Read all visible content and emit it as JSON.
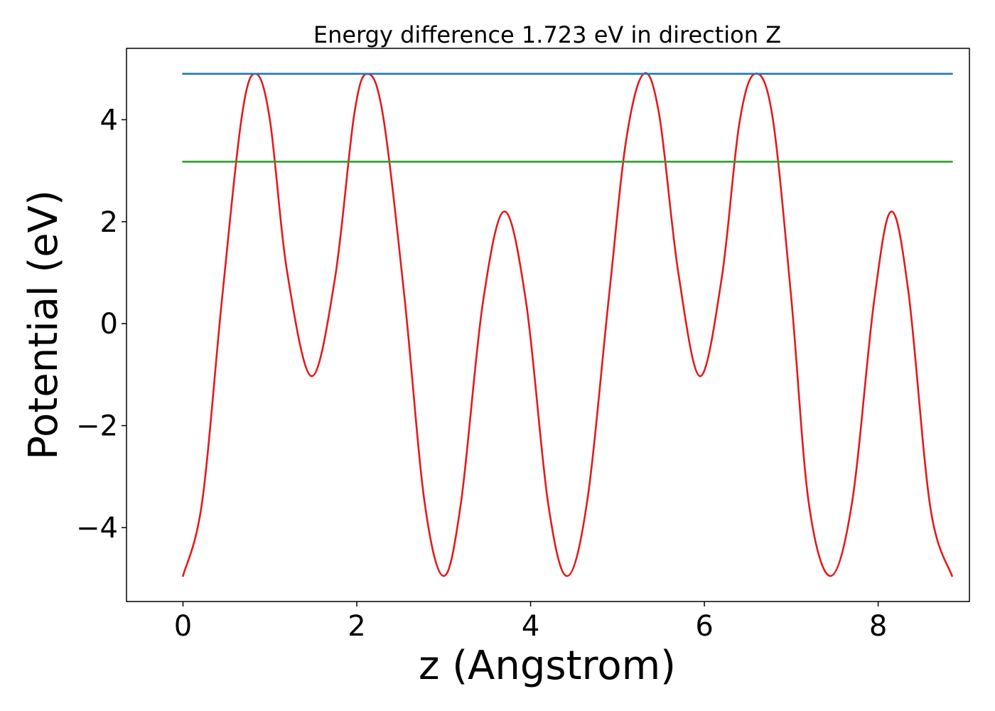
{
  "chart_data": {
    "type": "line",
    "title": "Energy difference 1.723 eV in direction Z",
    "xlabel": "z (Angstrom)",
    "ylabel": "Potential (eV)",
    "xlim": [
      -0.65,
      9.05
    ],
    "ylim": [
      -5.45,
      5.4
    ],
    "xticks": [
      0,
      2,
      4,
      6,
      8
    ],
    "yticks": [
      -4,
      -2,
      0,
      2,
      4
    ],
    "xtick_labels": [
      "0",
      "2",
      "4",
      "6",
      "8"
    ],
    "ytick_labels": [
      "−4",
      "−2",
      "0",
      "2",
      "4"
    ],
    "grid": false,
    "legend": "none",
    "series": [
      {
        "color": "#e31a1c",
        "kind": "curve",
        "x": [
          0.0,
          0.22,
          0.45,
          0.68,
          0.84,
          1.0,
          1.2,
          1.48,
          1.75,
          1.97,
          2.12,
          2.3,
          2.55,
          2.78,
          3.0,
          3.2,
          3.45,
          3.7,
          3.95,
          4.2,
          4.42,
          4.65,
          4.9,
          5.1,
          5.3,
          5.48,
          5.7,
          5.95,
          6.2,
          6.4,
          6.58,
          6.78,
          7.0,
          7.2,
          7.45,
          7.7,
          7.95,
          8.15,
          8.35,
          8.6,
          8.85
        ],
        "y": [
          -4.95,
          -3.5,
          0.5,
          4.1,
          4.9,
          4.0,
          1.0,
          -1.03,
          0.9,
          4.1,
          4.9,
          4.1,
          0.5,
          -3.5,
          -4.95,
          -3.5,
          0.4,
          2.2,
          0.4,
          -3.5,
          -4.95,
          -3.5,
          0.5,
          3.6,
          4.9,
          4.1,
          1.0,
          -1.03,
          0.9,
          3.9,
          4.9,
          4.1,
          0.5,
          -3.5,
          -4.95,
          -3.5,
          0.4,
          2.2,
          0.6,
          -3.6,
          -4.95
        ]
      },
      {
        "color": "#1f77b4",
        "kind": "hline",
        "x": [
          0.0,
          8.85
        ],
        "y": [
          4.9,
          4.9
        ]
      },
      {
        "color": "#2ca02c",
        "kind": "hline",
        "x": [
          0.0,
          8.85
        ],
        "y": [
          3.177,
          3.177
        ]
      }
    ]
  }
}
